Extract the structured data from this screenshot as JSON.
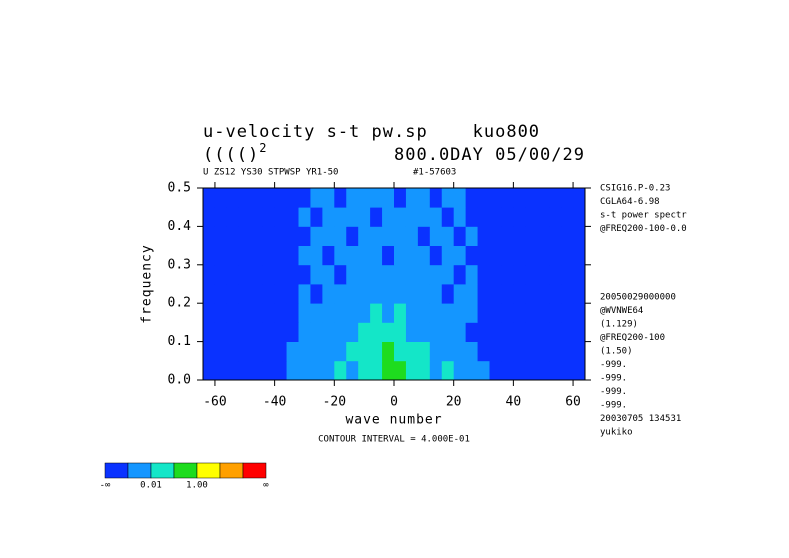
{
  "chart_data": {
    "type": "contourf",
    "title": "u-velocity s-t pw.sp    kuo800",
    "title2_main": "(((()",
    "title2_sup": "2",
    "title2_right": "800.0DAY 05/00/29",
    "subtitle_left": "U ZS12 YS30 STPWSP YR1-50",
    "subtitle_right": "#1-57603",
    "x_label": "wave number",
    "y_label": "frequency",
    "footnote": "CONTOUR INTERVAL = 4.000E-01",
    "side_notes_top": [
      "CSIG16.P-0.23",
      "CGLA64-6.98",
      "s-t power spectr",
      "@FREQ200-100-0.0"
    ],
    "side_notes_bottom": [
      "20050029000000",
      "@WVNWE64",
      "(1.129)",
      "@FREQ200-100",
      "(1.50)",
      "-999.",
      "-999.",
      "-999.",
      "-999.",
      "20030705 134531",
      "yukiko"
    ],
    "xlim": [
      -64,
      64
    ],
    "ylim": [
      0,
      0.5
    ],
    "xticks": [
      -60,
      -40,
      -20,
      0,
      20,
      40,
      60
    ],
    "yticks": [
      {
        "value": 0,
        "label": "0.0"
      },
      0.1,
      0.2,
      0.3,
      0.4,
      0.5
    ],
    "x": [
      -64,
      -60,
      -56,
      -52,
      -48,
      -44,
      -40,
      -36,
      -32,
      -28,
      -24,
      -20,
      -16,
      -12,
      -8,
      -4,
      0,
      4,
      8,
      12,
      16,
      20,
      24,
      28,
      32,
      36,
      40,
      44,
      48,
      52,
      56,
      60,
      64
    ],
    "y": [
      0,
      0.05,
      0.1,
      0.15,
      0.2,
      0.25,
      0.3,
      0.35,
      0.4,
      0.45,
      0.5
    ],
    "colors": [
      "#0a32ff",
      "#1496ff",
      "#14e6c8",
      "#1edc1e",
      "#ffff00",
      "#ffa000",
      "#ff0000"
    ],
    "colorbar_labels": [
      "-∞",
      null,
      "0.01",
      null,
      "1.00",
      null,
      null,
      "∞"
    ],
    "z": [
      [
        0,
        0,
        0,
        0,
        0,
        0,
        0,
        1,
        1,
        1,
        1,
        2,
        1,
        2,
        2,
        3,
        3,
        2,
        2,
        1,
        2,
        1,
        1,
        1,
        0,
        0,
        0,
        0,
        0,
        0,
        0,
        0
      ],
      [
        0,
        0,
        0,
        0,
        0,
        0,
        0,
        1,
        1,
        1,
        1,
        1,
        2,
        2,
        2,
        3,
        2,
        2,
        2,
        1,
        1,
        1,
        1,
        0,
        0,
        0,
        0,
        0,
        0,
        0,
        0,
        0
      ],
      [
        0,
        0,
        0,
        0,
        0,
        0,
        0,
        0,
        1,
        1,
        1,
        1,
        1,
        2,
        2,
        2,
        2,
        1,
        1,
        1,
        1,
        1,
        0,
        0,
        0,
        0,
        0,
        0,
        0,
        0,
        0,
        0
      ],
      [
        0,
        0,
        0,
        0,
        0,
        0,
        0,
        0,
        1,
        1,
        1,
        1,
        1,
        1,
        2,
        1,
        2,
        1,
        1,
        1,
        1,
        1,
        1,
        0,
        0,
        0,
        0,
        0,
        0,
        0,
        0,
        0
      ],
      [
        0,
        0,
        0,
        0,
        0,
        0,
        0,
        0,
        1,
        0,
        1,
        1,
        1,
        1,
        1,
        1,
        1,
        1,
        1,
        1,
        0,
        1,
        1,
        0,
        0,
        0,
        0,
        0,
        0,
        0,
        0,
        0
      ],
      [
        0,
        0,
        0,
        0,
        0,
        0,
        0,
        0,
        0,
        1,
        1,
        0,
        1,
        1,
        1,
        1,
        1,
        1,
        1,
        1,
        1,
        0,
        1,
        0,
        0,
        0,
        0,
        0,
        0,
        0,
        0,
        0
      ],
      [
        0,
        0,
        0,
        0,
        0,
        0,
        0,
        0,
        1,
        1,
        0,
        1,
        1,
        1,
        1,
        0,
        1,
        1,
        1,
        0,
        1,
        1,
        0,
        0,
        0,
        0,
        0,
        0,
        0,
        0,
        0,
        0
      ],
      [
        0,
        0,
        0,
        0,
        0,
        0,
        0,
        0,
        0,
        1,
        1,
        1,
        0,
        1,
        1,
        1,
        1,
        1,
        0,
        1,
        1,
        0,
        1,
        0,
        0,
        0,
        0,
        0,
        0,
        0,
        0,
        0
      ],
      [
        0,
        0,
        0,
        0,
        0,
        0,
        0,
        0,
        1,
        0,
        1,
        1,
        1,
        1,
        0,
        1,
        1,
        1,
        1,
        1,
        0,
        1,
        0,
        0,
        0,
        0,
        0,
        0,
        0,
        0,
        0,
        0
      ],
      [
        0,
        0,
        0,
        0,
        0,
        0,
        0,
        0,
        0,
        1,
        1,
        0,
        1,
        1,
        1,
        1,
        0,
        1,
        1,
        0,
        1,
        1,
        0,
        0,
        0,
        0,
        0,
        0,
        0,
        0,
        0,
        0
      ]
    ]
  }
}
